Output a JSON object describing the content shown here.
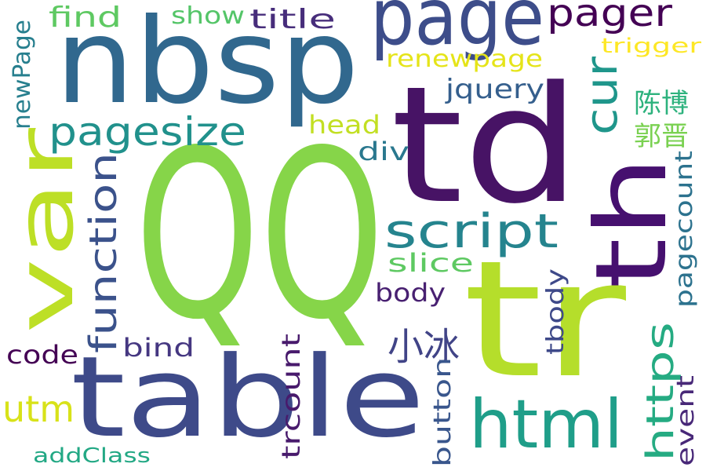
{
  "words": [
    {
      "text": "QQ",
      "color": "#86d549"
    },
    {
      "text": "nbsp",
      "color": "#31688e"
    },
    {
      "text": "td",
      "color": "#471365"
    },
    {
      "text": "table",
      "color": "#3e4a89"
    },
    {
      "text": "tr",
      "color": "#b5de2b"
    },
    {
      "text": "page",
      "color": "#3d4d8a"
    },
    {
      "text": "var",
      "color": "#bddf26"
    },
    {
      "text": "th",
      "color": "#46106f"
    },
    {
      "text": "html",
      "color": "#1f9e89"
    },
    {
      "text": "script",
      "color": "#25848e"
    },
    {
      "text": "pagesize",
      "color": "#21918c"
    },
    {
      "text": "function",
      "color": "#3b528b"
    },
    {
      "text": "pager",
      "color": "#440154"
    },
    {
      "text": "cur",
      "color": "#1f968b"
    },
    {
      "text": "小冰",
      "color": "#414487"
    },
    {
      "text": "utm",
      "color": "#d8e219"
    },
    {
      "text": "https",
      "color": "#25ab82"
    },
    {
      "text": "陈博",
      "color": "#2db27d"
    },
    {
      "text": "郭晋",
      "color": "#7ad151"
    },
    {
      "text": "find",
      "color": "#5ec962"
    },
    {
      "text": "show",
      "color": "#54c568"
    },
    {
      "text": "title",
      "color": "#472d7b"
    },
    {
      "text": "renewpage",
      "color": "#e5e419"
    },
    {
      "text": "jquery",
      "color": "#355f8d"
    },
    {
      "text": "head",
      "color": "#c2df23"
    },
    {
      "text": "div",
      "color": "#2a788e"
    },
    {
      "text": "slice",
      "color": "#5ec962"
    },
    {
      "text": "body",
      "color": "#482071"
    },
    {
      "text": "bind",
      "color": "#453781"
    },
    {
      "text": "code",
      "color": "#440154"
    },
    {
      "text": "trigger",
      "color": "#fde725"
    },
    {
      "text": "newPage",
      "color": "#277f8e"
    },
    {
      "text": "pagecount",
      "color": "#2c728e"
    },
    {
      "text": "tbody",
      "color": "#3e4989"
    },
    {
      "text": "trcount",
      "color": "#481a6c"
    },
    {
      "text": "button",
      "color": "#39568c"
    },
    {
      "text": "event",
      "color": "#482878"
    },
    {
      "text": "addClass",
      "color": "#22a884"
    }
  ]
}
